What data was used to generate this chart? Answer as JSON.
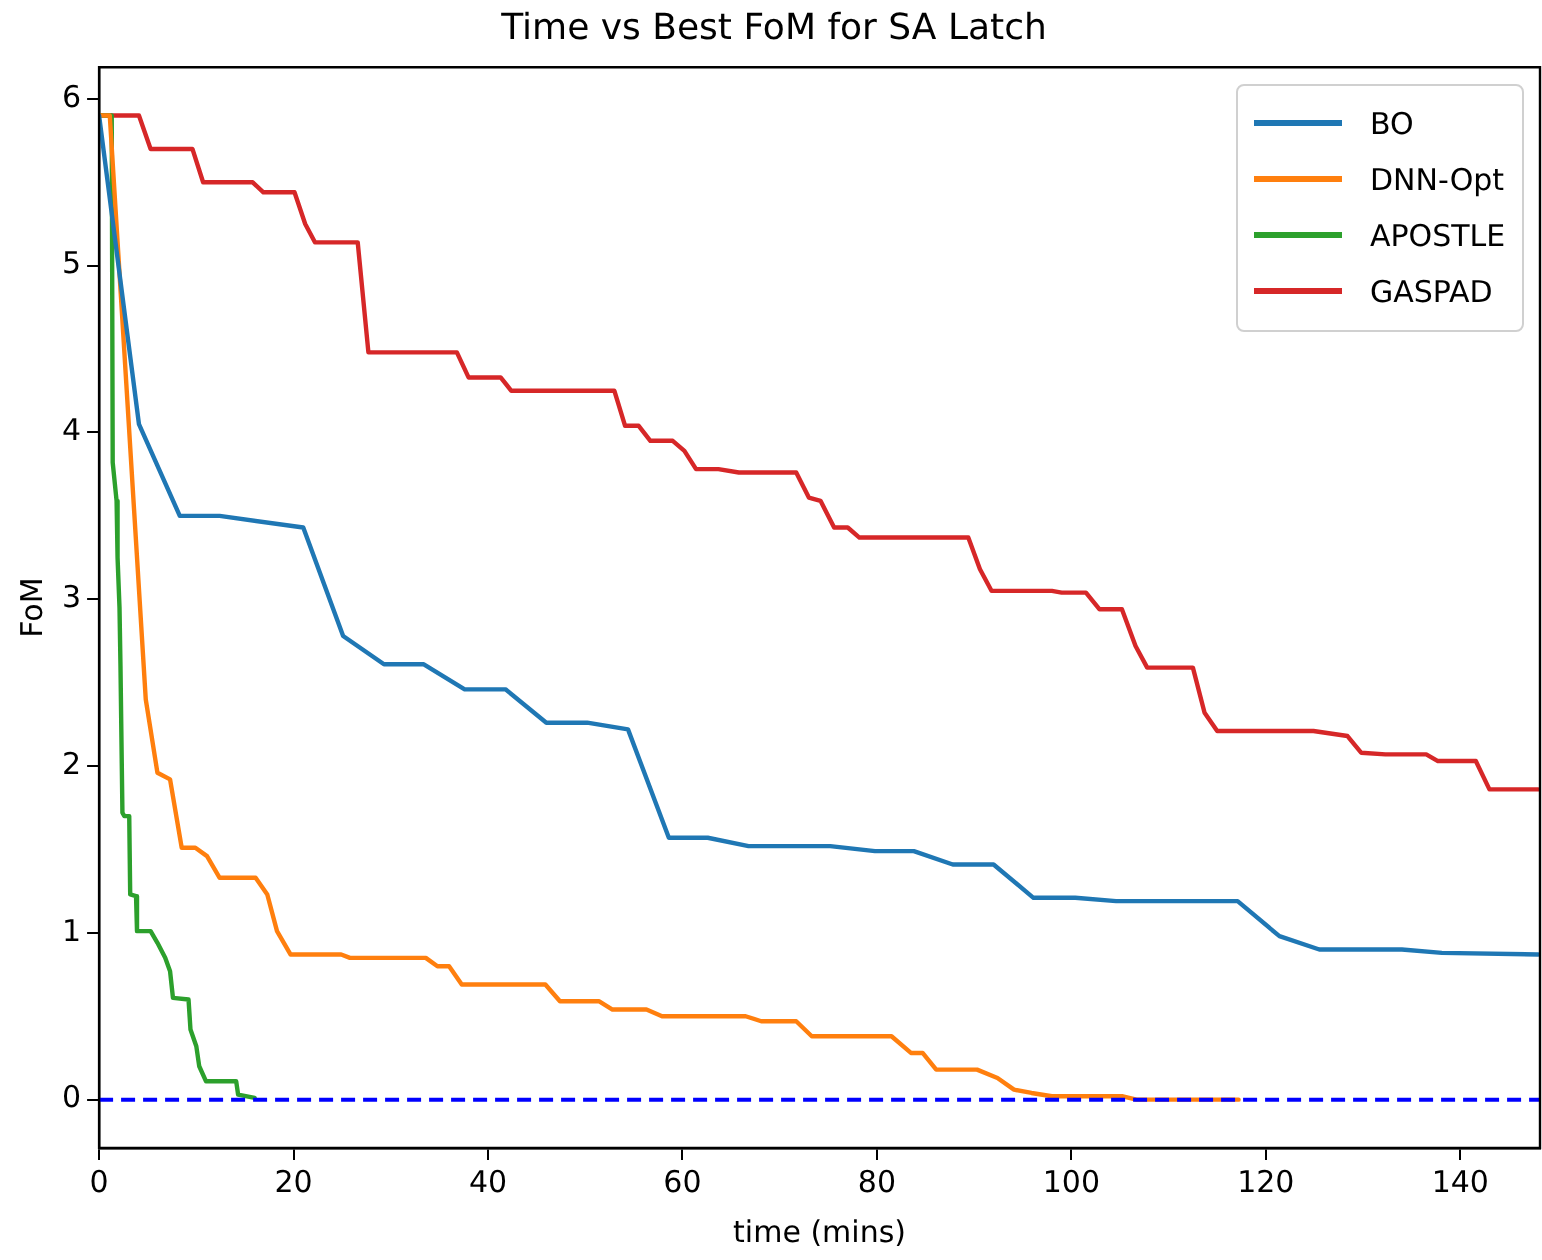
{
  "chart_data": {
    "type": "line",
    "title": "Time vs Best FoM for SA Latch",
    "xlabel": "time (mins)",
    "ylabel": "FoM",
    "xlim": [
      0,
      148.2
    ],
    "ylim": [
      -0.29,
      6.19
    ],
    "xticks": [
      0,
      20,
      40,
      60,
      80,
      100,
      120,
      140
    ],
    "yticks": [
      0,
      1,
      2,
      3,
      4,
      5,
      6
    ],
    "grid": false,
    "legend": "top right",
    "ref_lines": [
      {
        "axis": "y",
        "value": 0,
        "color": "#0000ff",
        "line_style": "dashed"
      }
    ],
    "series": [
      {
        "name": "BO",
        "color": "#1f77b4",
        "x": [
          0,
          4.1,
          8.3,
          12.4,
          21.0,
          25.1,
          29.3,
          33.4,
          37.6,
          41.8,
          46.0,
          50.2,
          54.4,
          58.6,
          62.6,
          66.8,
          75.2,
          79.8,
          83.8,
          87.8,
          92.0,
          96.1,
          100.4,
          104.6,
          117.1,
          121.4,
          125.5,
          134.0,
          138.1,
          148.0
        ],
        "values": [
          5.9,
          4.05,
          3.5,
          3.5,
          3.43,
          2.78,
          2.61,
          2.61,
          2.46,
          2.46,
          2.26,
          2.26,
          2.22,
          1.57,
          1.57,
          1.52,
          1.52,
          1.49,
          1.49,
          1.41,
          1.41,
          1.21,
          1.21,
          1.19,
          1.19,
          0.98,
          0.9,
          0.9,
          0.88,
          0.87
        ]
      },
      {
        "name": "DNN-Opt",
        "color": "#ff7f0e",
        "x": [
          0,
          1.1,
          4.8,
          6.0,
          7.3,
          8.5,
          9.9,
          11.1,
          12.4,
          16.1,
          17.3,
          18.3,
          19.7,
          24.9,
          25.8,
          33.6,
          34.8,
          36.0,
          37.3,
          45.9,
          47.4,
          51.4,
          52.8,
          56.3,
          57.9,
          66.5,
          68.1,
          71.7,
          73.3,
          81.5,
          83.5,
          84.7,
          86.1,
          90.3,
          92.4,
          94.1,
          95.9,
          98.0,
          105.3,
          106.7,
          117.2
        ],
        "values": [
          5.9,
          5.9,
          2.4,
          1.96,
          1.92,
          1.51,
          1.51,
          1.46,
          1.33,
          1.33,
          1.23,
          1.01,
          0.87,
          0.87,
          0.85,
          0.85,
          0.8,
          0.8,
          0.69,
          0.69,
          0.59,
          0.59,
          0.54,
          0.54,
          0.5,
          0.5,
          0.47,
          0.47,
          0.38,
          0.38,
          0.28,
          0.28,
          0.18,
          0.18,
          0.13,
          0.06,
          0.04,
          0.02,
          0.02,
          0.0,
          0.0
        ]
      },
      {
        "name": "APOSTLE",
        "color": "#2ca02c",
        "x": [
          0,
          1.3,
          1.4,
          1.8,
          1.9,
          2.1,
          2.2,
          2.4,
          2.6,
          3.1,
          3.2,
          3.8,
          3.9,
          5.3,
          6.0,
          6.8,
          7.3,
          7.6,
          9.2,
          9.4,
          10.0,
          10.3,
          11.0,
          14.1,
          14.3,
          16.0
        ],
        "values": [
          5.9,
          5.9,
          3.82,
          3.59,
          3.25,
          2.95,
          2.6,
          1.72,
          1.7,
          1.7,
          1.23,
          1.22,
          1.01,
          1.01,
          0.94,
          0.85,
          0.77,
          0.61,
          0.6,
          0.42,
          0.32,
          0.2,
          0.11,
          0.11,
          0.03,
          0.01
        ]
      },
      {
        "name": "GASPAD",
        "color": "#d62728",
        "x": [
          0,
          4.1,
          5.3,
          9.6,
          10.7,
          15.8,
          16.9,
          20.1,
          21.2,
          22.2,
          26.6,
          27.7,
          36.8,
          38.0,
          41.3,
          42.4,
          53.0,
          54.1,
          55.5,
          56.7,
          59.0,
          60.2,
          61.4,
          63.7,
          65.8,
          71.7,
          73.0,
          74.2,
          75.6,
          77.0,
          78.2,
          89.4,
          90.6,
          91.8,
          98.0,
          99.0,
          101.5,
          102.9,
          105.2,
          106.6,
          107.8,
          112.5,
          113.7,
          115.0,
          124.9,
          128.4,
          129.8,
          132.3,
          136.5,
          137.7,
          141.6,
          143.0,
          148.0
        ],
        "values": [
          5.9,
          5.9,
          5.7,
          5.7,
          5.5,
          5.5,
          5.44,
          5.44,
          5.25,
          5.14,
          5.14,
          4.48,
          4.48,
          4.33,
          4.33,
          4.25,
          4.25,
          4.04,
          4.04,
          3.95,
          3.95,
          3.89,
          3.78,
          3.78,
          3.76,
          3.76,
          3.61,
          3.59,
          3.43,
          3.43,
          3.37,
          3.37,
          3.18,
          3.05,
          3.05,
          3.04,
          3.04,
          2.94,
          2.94,
          2.72,
          2.59,
          2.59,
          2.32,
          2.21,
          2.21,
          2.18,
          2.08,
          2.07,
          2.07,
          2.03,
          2.03,
          1.86,
          1.86
        ]
      }
    ]
  }
}
